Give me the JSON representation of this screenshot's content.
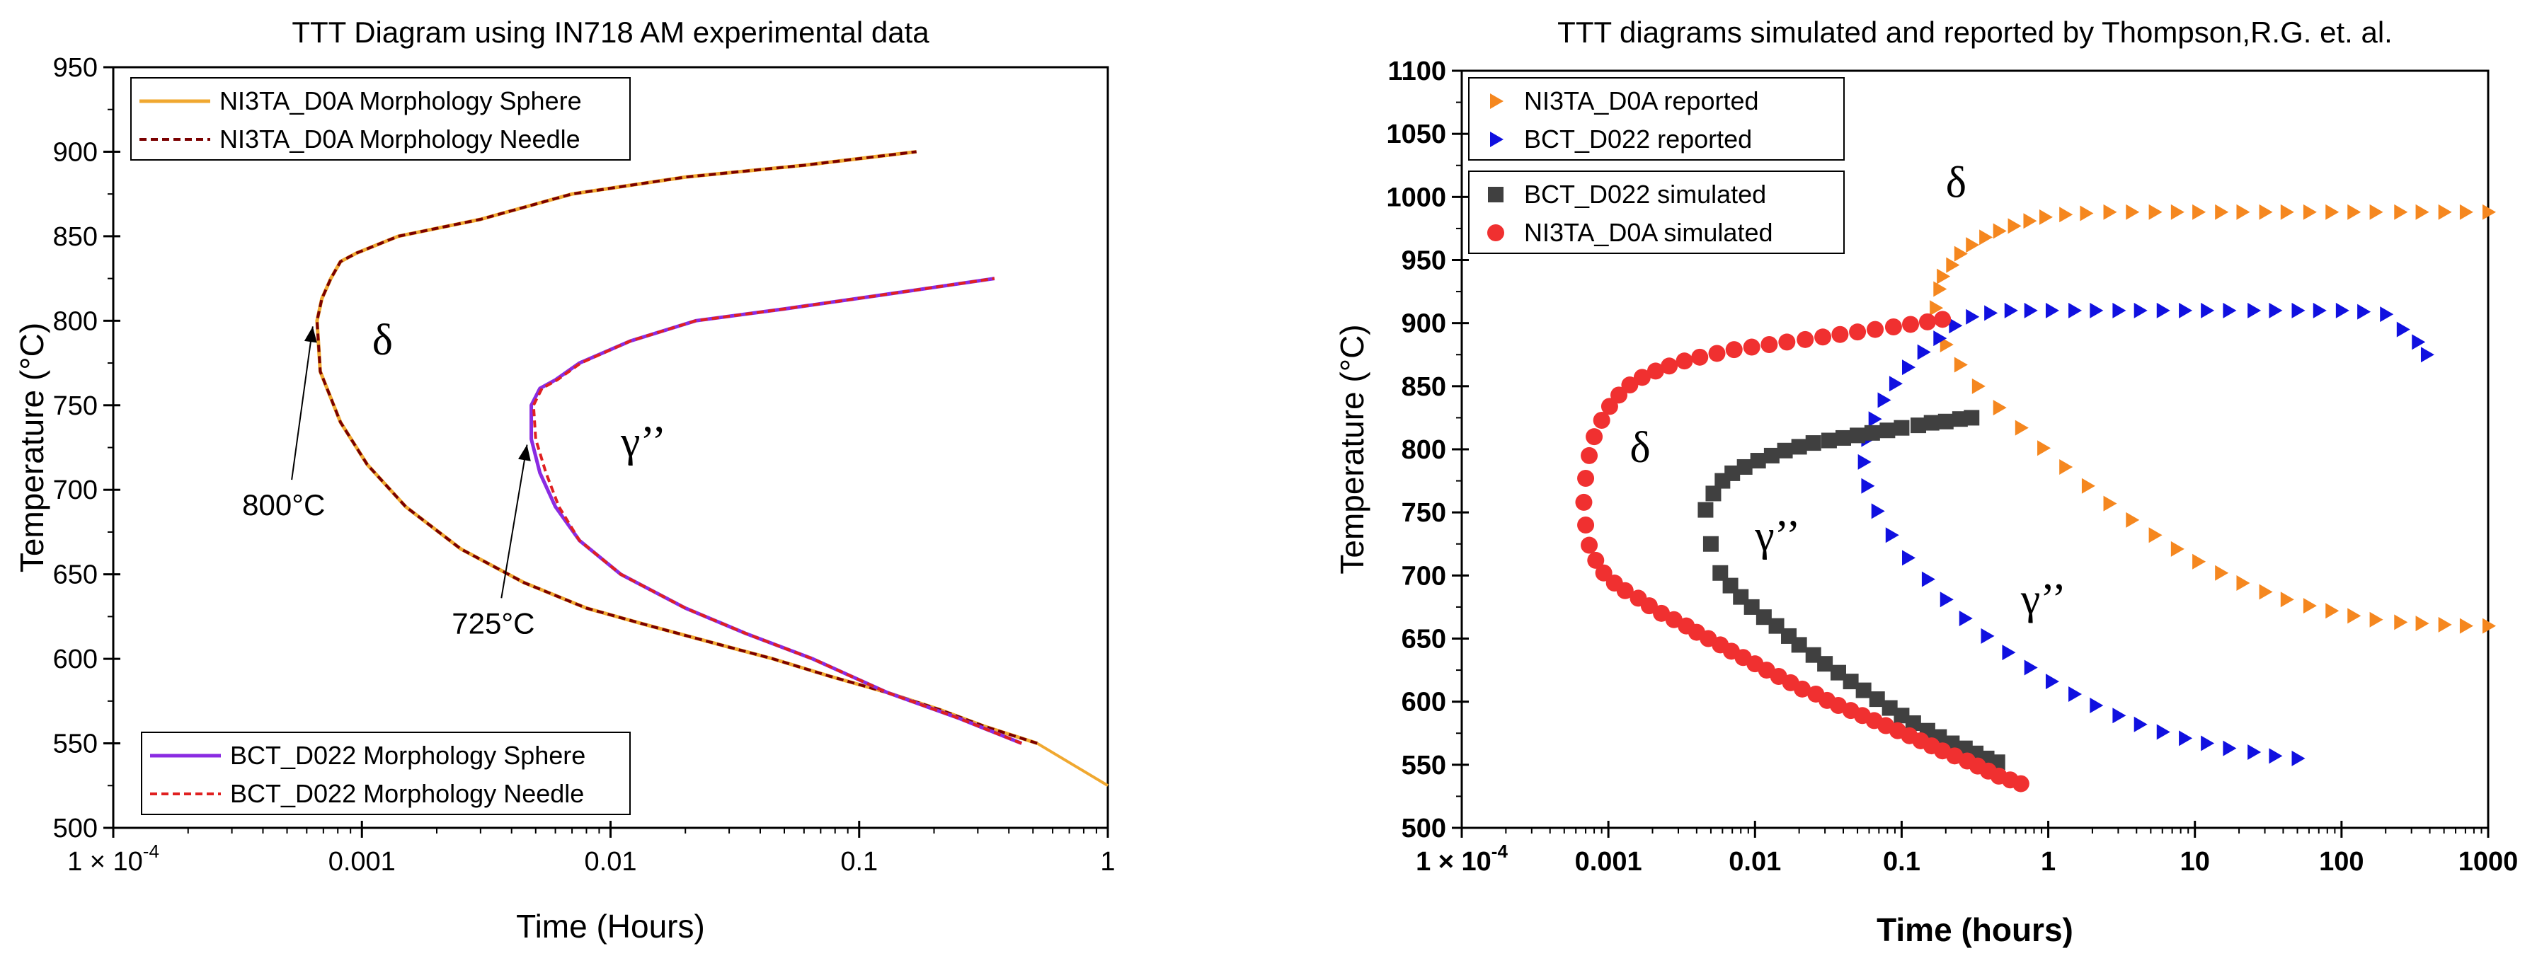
{
  "chart_data": [
    {
      "type": "line",
      "title": "TTT Diagram using IN718 AM experimental data",
      "xlabel": "Time (Hours)",
      "ylabel": "Temperature (°C)",
      "xscale": "log",
      "xlim": [
        0.0001,
        1
      ],
      "ylim": [
        500,
        950
      ],
      "xticks": [
        0.0001,
        0.001,
        0.01,
        0.1,
        1
      ],
      "xtick_labels": [
        "1 × 10",
        "0.001",
        "0.01",
        "0.1",
        "1"
      ],
      "first_tick_exponent": "-4",
      "yticks": [
        500,
        550,
        600,
        650,
        700,
        750,
        800,
        850,
        900,
        950
      ],
      "series": [
        {
          "name": "NI3TA_D0A Morphology Sphere",
          "style": "solid",
          "color": "#f0a830",
          "x": [
            0.52,
            0.32,
            0.21,
            0.13,
            0.075,
            0.045,
            0.025,
            0.014,
            0.008,
            0.0045,
            0.0025,
            0.0015,
            0.00105,
            0.00082,
            0.00068,
            0.00066,
            0.00069,
            0.00075,
            0.00082,
            0.00095,
            0.0014,
            0.003,
            0.007,
            0.02,
            0.06,
            0.17
          ],
          "y": [
            550,
            560,
            570,
            580,
            590,
            600,
            610,
            620,
            630,
            645,
            665,
            690,
            715,
            740,
            770,
            800,
            813,
            825,
            835,
            840,
            850,
            860,
            875,
            885,
            892,
            900
          ]
        },
        {
          "name": "NI3TA_D0A Morphology Needle",
          "style": "dashed",
          "color": "#7a0000",
          "x": [
            0.52,
            0.32,
            0.21,
            0.13,
            0.075,
            0.045,
            0.025,
            0.014,
            0.008,
            0.0045,
            0.0025,
            0.0015,
            0.00105,
            0.00082,
            0.00068,
            0.00066,
            0.00069,
            0.00075,
            0.00082,
            0.00095,
            0.0014,
            0.003,
            0.007,
            0.02,
            0.06,
            0.17
          ],
          "y": [
            550,
            560,
            570,
            580,
            590,
            600,
            610,
            620,
            630,
            645,
            665,
            690,
            715,
            740,
            770,
            800,
            813,
            825,
            835,
            840,
            850,
            860,
            875,
            885,
            892,
            900
          ]
        },
        {
          "name": "BCT_D022 Morphology Sphere",
          "style": "solid",
          "color": "#8a2be2",
          "x": [
            0.45,
            0.25,
            0.13,
            0.065,
            0.035,
            0.02,
            0.011,
            0.0075,
            0.006,
            0.0052,
            0.0048,
            0.0048,
            0.0052,
            0.006,
            0.0075,
            0.012,
            0.022,
            0.05,
            0.12,
            0.35
          ],
          "y": [
            550,
            565,
            580,
            600,
            615,
            630,
            650,
            670,
            690,
            710,
            730,
            750,
            760,
            765,
            775,
            788,
            800,
            807,
            815,
            825
          ]
        },
        {
          "name": "BCT_D022 Morphology Needle",
          "style": "dashed",
          "color": "#e02020",
          "x": [
            0.45,
            0.25,
            0.13,
            0.065,
            0.035,
            0.02,
            0.011,
            0.0075,
            0.0062,
            0.0055,
            0.005,
            0.0049,
            0.0053,
            0.0061,
            0.0076,
            0.012,
            0.022,
            0.05,
            0.12,
            0.35
          ],
          "y": [
            550,
            565,
            580,
            600,
            615,
            630,
            650,
            670,
            690,
            710,
            730,
            750,
            760,
            765,
            775,
            788,
            800,
            807,
            815,
            825
          ]
        }
      ],
      "extra_segment": {
        "color": "#f0a830",
        "x": [
          0.52,
          1.0
        ],
        "y": [
          550,
          525
        ]
      },
      "legend_top": {
        "placement": "top-left",
        "entries": [
          "NI3TA_D0A Morphology Sphere",
          "NI3TA_D0A Morphology Needle"
        ]
      },
      "legend_bottom": {
        "placement": "bottom-left",
        "entries": [
          "BCT_D022 Morphology Sphere",
          "BCT_D022 Morphology Needle"
        ]
      },
      "annotations": [
        {
          "text": "δ",
          "x": 0.0011,
          "y": 780
        },
        {
          "text": "γ’’",
          "x": 0.011,
          "y": 720
        },
        {
          "text": "800°C",
          "x": 0.00033,
          "y": 685,
          "arrow_to": [
            0.00066,
            800
          ]
        },
        {
          "text": "725°C",
          "x": 0.0023,
          "y": 615,
          "arrow_to": [
            0.0048,
            730
          ]
        }
      ]
    },
    {
      "type": "scatter",
      "title": "TTT diagrams simulated and reported by Thompson,R.G. et. al.",
      "xlabel": "Time (hours)",
      "ylabel": "Temperature (°C)",
      "xscale": "log",
      "xlim": [
        0.0001,
        1000
      ],
      "ylim": [
        500,
        1100
      ],
      "xticks": [
        0.0001,
        0.001,
        0.01,
        0.1,
        1,
        10,
        100,
        1000
      ],
      "xtick_labels": [
        "1 × 10",
        "0.001",
        "0.01",
        "0.1",
        "1",
        "10",
        "100",
        "1000"
      ],
      "first_tick_exponent": "-4",
      "yticks": [
        500,
        550,
        600,
        650,
        700,
        750,
        800,
        850,
        900,
        950,
        1000,
        1050,
        1100
      ],
      "series": [
        {
          "name": "NI3TA_D0A reported",
          "marker": "triangle-right",
          "color": "#f5871f",
          "x": [
            1000,
            700,
            500,
            350,
            250,
            170,
            120,
            85,
            60,
            42,
            30,
            21,
            15,
            10.5,
            7.5,
            5.3,
            3.7,
            2.6,
            1.85,
            1.3,
            0.92,
            0.65,
            0.46,
            0.33,
            0.25,
            0.2,
            0.17,
            0.18,
            0.19,
            0.22,
            0.25,
            0.3,
            0.37,
            0.46,
            0.58,
            0.74,
            0.95,
            1.3,
            1.8,
            2.6,
            3.7,
            5.3,
            7.5,
            10.5,
            15,
            21,
            30,
            42,
            60,
            85,
            120,
            170,
            250,
            350,
            500,
            700,
            1000
          ],
          "y": [
            660,
            660,
            661,
            662,
            663,
            665,
            668,
            672,
            676,
            681,
            687,
            694,
            702,
            711,
            721,
            732,
            744,
            757,
            771,
            786,
            801,
            817,
            833,
            850,
            867,
            883,
            912,
            927,
            937,
            946,
            955,
            962,
            968,
            973,
            977,
            981,
            984,
            986,
            987,
            988,
            988,
            988,
            988,
            988,
            988,
            988,
            988,
            988,
            988,
            988,
            988,
            988,
            988,
            988,
            988,
            988,
            988
          ]
        },
        {
          "name": "BCT_D022 reported",
          "marker": "triangle-right",
          "color": "#1010e0",
          "x": [
            50,
            35,
            25,
            17,
            12,
            8.5,
            6,
            4.2,
            3,
            2.1,
            1.5,
            1.05,
            0.75,
            0.53,
            0.38,
            0.27,
            0.2,
            0.15,
            0.11,
            0.085,
            0.068,
            0.058,
            0.055,
            0.058,
            0.065,
            0.075,
            0.09,
            0.11,
            0.14,
            0.18,
            0.23,
            0.3,
            0.4,
            0.55,
            0.75,
            1.05,
            1.5,
            2.1,
            3,
            4.2,
            6,
            8.5,
            12,
            17,
            25,
            35,
            50,
            70,
            100,
            140,
            200,
            260,
            330,
            380
          ],
          "y": [
            555,
            557,
            560,
            563,
            567,
            571,
            576,
            582,
            589,
            597,
            606,
            616,
            627,
            639,
            652,
            666,
            681,
            697,
            714,
            732,
            751,
            771,
            790,
            808,
            824,
            839,
            852,
            865,
            877,
            888,
            898,
            905,
            908,
            910,
            910,
            910,
            910,
            910,
            910,
            910,
            910,
            910,
            910,
            910,
            910,
            910,
            910,
            910,
            910,
            909,
            907,
            895,
            885,
            875
          ]
        },
        {
          "name": "BCT_D022 simulated",
          "marker": "square",
          "color": "#404040",
          "x": [
            0.45,
            0.38,
            0.32,
            0.27,
            0.22,
            0.18,
            0.15,
            0.12,
            0.1,
            0.083,
            0.068,
            0.055,
            0.045,
            0.037,
            0.03,
            0.025,
            0.02,
            0.017,
            0.014,
            0.0115,
            0.0095,
            0.008,
            0.0068,
            0.0058,
            0.005,
            0.0046,
            0.0052,
            0.006,
            0.007,
            0.0085,
            0.0105,
            0.013,
            0.016,
            0.02,
            0.025,
            0.032,
            0.04,
            0.05,
            0.063,
            0.08,
            0.1,
            0.13,
            0.16,
            0.2,
            0.25,
            0.3
          ],
          "y": [
            552,
            555,
            559,
            563,
            567,
            572,
            577,
            583,
            589,
            595,
            602,
            609,
            616,
            623,
            630,
            637,
            645,
            652,
            660,
            667,
            675,
            683,
            692,
            702,
            725,
            752,
            765,
            775,
            781,
            786,
            791,
            795,
            799,
            802,
            805,
            807,
            809,
            811,
            813,
            815,
            817,
            819,
            821,
            822,
            824,
            825
          ]
        },
        {
          "name": "NI3TA_D0A simulated",
          "marker": "circle",
          "color": "#f03030",
          "x": [
            0.65,
            0.55,
            0.46,
            0.39,
            0.33,
            0.28,
            0.23,
            0.19,
            0.16,
            0.135,
            0.113,
            0.094,
            0.078,
            0.065,
            0.054,
            0.045,
            0.037,
            0.031,
            0.026,
            0.021,
            0.0175,
            0.0145,
            0.012,
            0.01,
            0.0083,
            0.0069,
            0.0058,
            0.0048,
            0.004,
            0.0034,
            0.0028,
            0.0023,
            0.0019,
            0.0016,
            0.0013,
            0.0011,
            0.00093,
            0.00082,
            0.00074,
            0.0007,
            0.00068,
            0.0007,
            0.00074,
            0.0008,
            0.0009,
            0.00102,
            0.00118,
            0.0014,
            0.0017,
            0.0021,
            0.0026,
            0.0033,
            0.0042,
            0.0055,
            0.0072,
            0.0095,
            0.0125,
            0.0165,
            0.022,
            0.029,
            0.038,
            0.05,
            0.066,
            0.088,
            0.115,
            0.15,
            0.19
          ],
          "y": [
            535,
            538,
            541,
            545,
            549,
            553,
            557,
            561,
            565,
            569,
            573,
            577,
            581,
            585,
            589,
            593,
            597,
            601,
            606,
            610,
            615,
            620,
            625,
            630,
            635,
            640,
            645,
            650,
            655,
            660,
            665,
            670,
            676,
            682,
            688,
            694,
            702,
            712,
            724,
            740,
            758,
            777,
            795,
            810,
            823,
            834,
            843,
            851,
            857,
            862,
            866,
            870,
            873,
            876,
            879,
            881,
            883,
            885,
            887,
            889,
            891,
            893,
            895,
            897,
            899,
            901,
            903
          ]
        }
      ],
      "legend_top": {
        "placement": "top-left",
        "entries": [
          "NI3TA_D0A reported",
          "BCT_D022 reported"
        ]
      },
      "legend_bottom": {
        "placement": "upper-left",
        "entries": [
          "BCT_D022 simulated",
          "NI3TA_D0A simulated"
        ]
      },
      "annotations": [
        {
          "text": "δ",
          "x": 0.2,
          "y": 1000
        },
        {
          "text": "δ",
          "x": 0.0014,
          "y": 790
        },
        {
          "text": "γ’’",
          "x": 0.01,
          "y": 720
        },
        {
          "text": "γ’’",
          "x": 0.65,
          "y": 670
        }
      ]
    }
  ]
}
